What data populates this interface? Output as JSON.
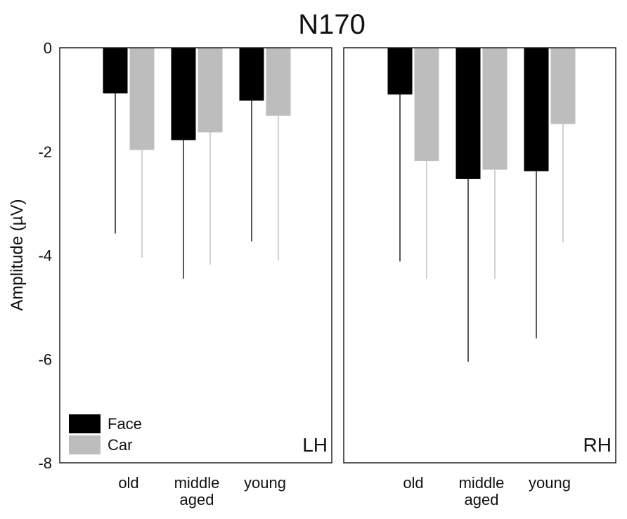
{
  "chart_data": {
    "type": "bar",
    "title": "N170",
    "ylabel": "Amplitude (µV)",
    "ylim": [
      -8,
      0
    ],
    "yticks": [
      0,
      -2,
      -4,
      -6,
      -8
    ],
    "categories": [
      [
        "old"
      ],
      [
        "middle",
        "aged"
      ],
      [
        "young"
      ]
    ],
    "legend": {
      "placement": "bottom-left",
      "entries": [
        {
          "name": "Face",
          "color": "#000000"
        },
        {
          "name": "Car",
          "color": "#bdbdbd"
        }
      ]
    },
    "series_colors": {
      "bar_Face": "#000000",
      "bar_Car": "#bdbdbd",
      "err_Face": "#222222",
      "err_Car": "#c4c4c4"
    },
    "panels": [
      {
        "label": "LH",
        "series": [
          {
            "name": "Face",
            "values": [
              -0.88,
              -1.78,
              -1.02
            ],
            "error_bottom": [
              -3.58,
              -4.45,
              -3.73
            ]
          },
          {
            "name": "Car",
            "values": [
              -1.97,
              -1.63,
              -1.31
            ],
            "error_bottom": [
              -4.05,
              -4.18,
              -4.1
            ]
          }
        ]
      },
      {
        "label": "RH",
        "series": [
          {
            "name": "Face",
            "values": [
              -0.9,
              -2.53,
              -2.38
            ],
            "error_bottom": [
              -4.12,
              -6.05,
              -5.6
            ]
          },
          {
            "name": "Car",
            "values": [
              -2.18,
              -2.35,
              -1.47
            ],
            "error_bottom": [
              -4.45,
              -4.45,
              -3.75
            ]
          }
        ]
      }
    ]
  }
}
